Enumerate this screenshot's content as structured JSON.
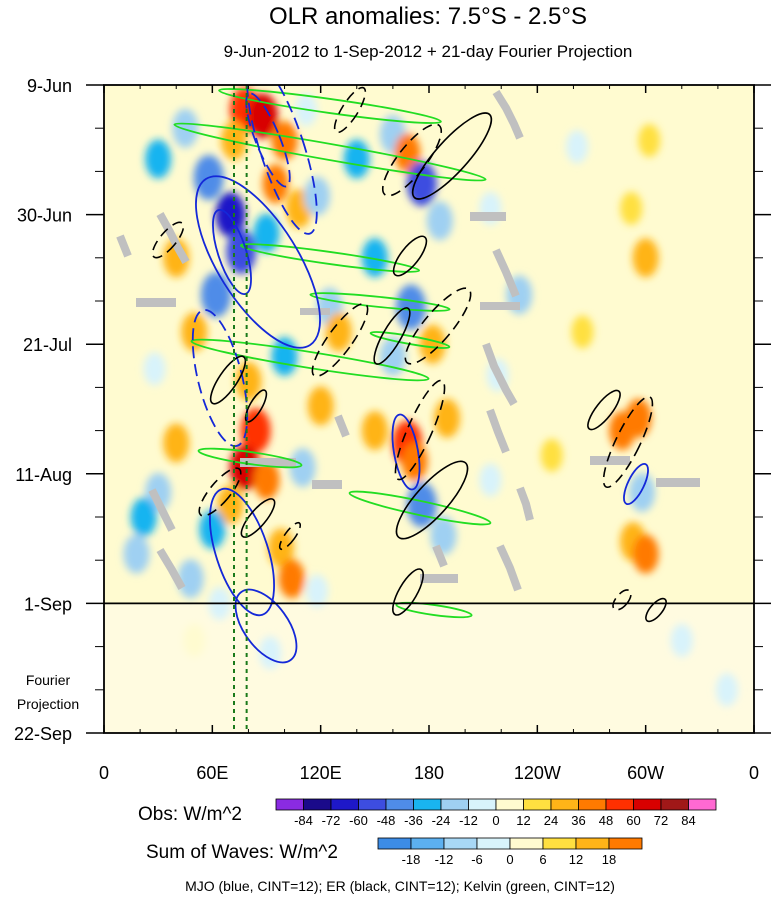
{
  "chart_data": {
    "type": "heatmap",
    "title": "OLR anomalies: 7.5°S - 2.5°S",
    "subtitle": "9-Jun-2012 to 1-Sep-2012 + 21-day Fourier Projection",
    "x_ticks": [
      "0",
      "60E",
      "120E",
      "180",
      "120W",
      "60W",
      "0"
    ],
    "x_tick_lons": [
      0,
      60,
      120,
      180,
      240,
      300,
      360
    ],
    "y_ticks": [
      "9-Jun",
      "30-Jun",
      "21-Jul",
      "11-Aug",
      "1-Sep",
      "22-Sep"
    ],
    "y_tick_days": [
      0,
      21,
      42,
      63,
      84,
      105
    ],
    "observed_end_day": 84,
    "projection_label": [
      "Fourier",
      "Projection"
    ],
    "reference_lines_lon": [
      72,
      79
    ],
    "obs_colorbar": {
      "label": "Obs: W/m^2",
      "ticks": [
        "-84",
        "-72",
        "-60",
        "-48",
        "-36",
        "-24",
        "-12",
        "0",
        "12",
        "24",
        "36",
        "48",
        "60",
        "72",
        "84"
      ],
      "colors": [
        "#8a2be2",
        "#1a0a8a",
        "#1e18c8",
        "#3d4de0",
        "#4f8ce8",
        "#19b4f0",
        "#9fd0f2",
        "#d8f3fb",
        "#fffbd0",
        "#ffe040",
        "#ffb418",
        "#ff7a00",
        "#ff3000",
        "#d80000",
        "#a01818",
        "#ff69d2"
      ]
    },
    "waves_colorbar": {
      "label": "Sum of Waves: W/m^2",
      "ticks": [
        "-18",
        "-12",
        "-6",
        "0",
        "6",
        "12",
        "18"
      ],
      "colors": [
        "#3c8ce6",
        "#5cb0f0",
        "#a8d8f6",
        "#d8f3fb",
        "#fffbd0",
        "#ffe040",
        "#ffb418",
        "#ff7a00"
      ]
    },
    "contours_caption": "MJO (blue, CINT=12); ER (black, CINT=12); Kelvin (green, CINT=12)",
    "series": [
      {
        "name": "MJO",
        "color": "#1428d8"
      },
      {
        "name": "ER",
        "color": "#000000"
      },
      {
        "name": "Kelvin",
        "color": "#22dd22"
      }
    ],
    "cells": [
      {
        "lon": 78,
        "day": 4,
        "value": 48
      },
      {
        "lon": 88,
        "day": 5,
        "value": 60
      },
      {
        "lon": 100,
        "day": 9,
        "value": 36
      },
      {
        "lon": 72,
        "day": 9,
        "value": 24
      },
      {
        "lon": 112,
        "day": 4,
        "value": -12
      },
      {
        "lon": 45,
        "day": 7,
        "value": -24
      },
      {
        "lon": 30,
        "day": 12,
        "value": -36
      },
      {
        "lon": 58,
        "day": 15,
        "value": -48
      },
      {
        "lon": 70,
        "day": 21,
        "value": -72
      },
      {
        "lon": 76,
        "day": 27,
        "value": -60
      },
      {
        "lon": 90,
        "day": 24,
        "value": -36
      },
      {
        "lon": 108,
        "day": 20,
        "value": 24
      },
      {
        "lon": 95,
        "day": 16,
        "value": 36
      },
      {
        "lon": 118,
        "day": 18,
        "value": -24
      },
      {
        "lon": 140,
        "day": 12,
        "value": -36
      },
      {
        "lon": 160,
        "day": 8,
        "value": -24
      },
      {
        "lon": 168,
        "day": 11,
        "value": 36
      },
      {
        "lon": 176,
        "day": 16,
        "value": -60
      },
      {
        "lon": 186,
        "day": 22,
        "value": -24
      },
      {
        "lon": 150,
        "day": 28,
        "value": -36
      },
      {
        "lon": 170,
        "day": 36,
        "value": -48
      },
      {
        "lon": 182,
        "day": 42,
        "value": 24
      },
      {
        "lon": 160,
        "day": 44,
        "value": -24
      },
      {
        "lon": 168,
        "day": 58,
        "value": 48
      },
      {
        "lon": 172,
        "day": 61,
        "value": 36
      },
      {
        "lon": 150,
        "day": 56,
        "value": 24
      },
      {
        "lon": 176,
        "day": 68,
        "value": -48
      },
      {
        "lon": 188,
        "day": 73,
        "value": -24
      },
      {
        "lon": 190,
        "day": 54,
        "value": 24
      },
      {
        "lon": 120,
        "day": 52,
        "value": 24
      },
      {
        "lon": 100,
        "day": 44,
        "value": -36
      },
      {
        "lon": 80,
        "day": 48,
        "value": 24
      },
      {
        "lon": 84,
        "day": 56,
        "value": 48
      },
      {
        "lon": 78,
        "day": 62,
        "value": 60
      },
      {
        "lon": 90,
        "day": 64,
        "value": 36
      },
      {
        "lon": 70,
        "day": 68,
        "value": 24
      },
      {
        "lon": 60,
        "day": 72,
        "value": -36
      },
      {
        "lon": 48,
        "day": 80,
        "value": -24
      },
      {
        "lon": 64,
        "day": 84,
        "value": -12
      },
      {
        "lon": 98,
        "day": 75,
        "value": 24
      },
      {
        "lon": 104,
        "day": 80,
        "value": 36
      },
      {
        "lon": 118,
        "day": 82,
        "value": -12
      },
      {
        "lon": 30,
        "day": 66,
        "value": -24
      },
      {
        "lon": 40,
        "day": 58,
        "value": 24
      },
      {
        "lon": 28,
        "day": 46,
        "value": -12
      },
      {
        "lon": 50,
        "day": 40,
        "value": 24
      },
      {
        "lon": 62,
        "day": 34,
        "value": -48
      },
      {
        "lon": 40,
        "day": 28,
        "value": 24
      },
      {
        "lon": 125,
        "day": 36,
        "value": -24
      },
      {
        "lon": 130,
        "day": 40,
        "value": 24
      },
      {
        "lon": 214,
        "day": 20,
        "value": -12
      },
      {
        "lon": 230,
        "day": 34,
        "value": -24
      },
      {
        "lon": 218,
        "day": 47,
        "value": -12
      },
      {
        "lon": 214,
        "day": 64,
        "value": -12
      },
      {
        "lon": 265,
        "day": 40,
        "value": 12
      },
      {
        "lon": 300,
        "day": 28,
        "value": 24
      },
      {
        "lon": 292,
        "day": 20,
        "value": 12
      },
      {
        "lon": 287,
        "day": 56,
        "value": 36
      },
      {
        "lon": 296,
        "day": 54,
        "value": 36
      },
      {
        "lon": 293,
        "day": 74,
        "value": 24
      },
      {
        "lon": 300,
        "day": 76,
        "value": 36
      },
      {
        "lon": 298,
        "day": 66,
        "value": -24
      },
      {
        "lon": 302,
        "day": 9,
        "value": 12
      },
      {
        "lon": 262,
        "day": 10,
        "value": -12
      },
      {
        "lon": 248,
        "day": 60,
        "value": 12
      },
      {
        "lon": 110,
        "day": 62,
        "value": -24
      },
      {
        "lon": 22,
        "day": 70,
        "value": -36
      },
      {
        "lon": 18,
        "day": 76,
        "value": -24
      },
      {
        "lon": 92,
        "day": 92,
        "value": -12
      },
      {
        "lon": 50,
        "day": 90,
        "value": 6
      },
      {
        "lon": 320,
        "day": 90,
        "value": -6
      },
      {
        "lon": 345,
        "day": 98,
        "value": -6
      }
    ]
  }
}
